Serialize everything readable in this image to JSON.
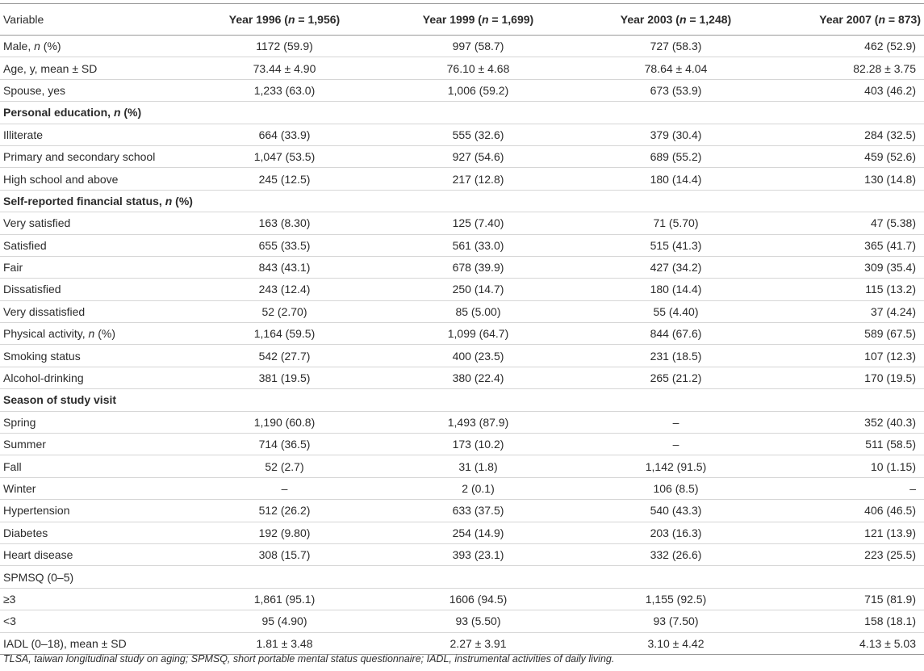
{
  "header": {
    "variable": "Variable",
    "years": [
      {
        "pre": "Year 1996 (",
        "n": "n",
        "post": " = 1,956)"
      },
      {
        "pre": "Year 1999 (",
        "n": "n",
        "post": " = 1,699)"
      },
      {
        "pre": "Year 2003 (",
        "n": "n",
        "post": " = 1,248)"
      },
      {
        "pre": "Year 2007 (",
        "n": "n",
        "post": " = 873)"
      }
    ]
  },
  "rows": [
    {
      "label": "Male, ",
      "label_n": "n",
      "label_rest": " (%)",
      "values": [
        "1172 (59.9)",
        "997 (58.7)",
        "727 (58.3)",
        "462 (52.9)"
      ]
    },
    {
      "label": "Age, y, mean ± SD",
      "values": [
        "73.44 ± 4.90",
        "76.10 ± 4.68",
        "78.64 ± 4.04",
        "82.28 ± 3.75"
      ]
    },
    {
      "label": "Spouse, yes",
      "values": [
        "1,233 (63.0)",
        "1,006 (59.2)",
        "673 (53.9)",
        "403 (46.2)"
      ]
    },
    {
      "section": true,
      "label": "Personal education, ",
      "label_n": "n",
      "label_rest": " (%)",
      "values": [
        "",
        "",
        "",
        ""
      ]
    },
    {
      "label": "Illiterate",
      "values": [
        "664 (33.9)",
        "555 (32.6)",
        "379 (30.4)",
        "284 (32.5)"
      ]
    },
    {
      "label": "Primary and secondary school",
      "values": [
        "1,047 (53.5)",
        "927 (54.6)",
        "689 (55.2)",
        "459 (52.6)"
      ]
    },
    {
      "label": "High school and above",
      "values": [
        "245 (12.5)",
        "217 (12.8)",
        "180 (14.4)",
        "130 (14.8)"
      ]
    },
    {
      "section": true,
      "label": "Self-reported financial status, ",
      "label_n": "n",
      "label_rest": " (%)",
      "values": [
        "",
        "",
        "",
        ""
      ]
    },
    {
      "label": "Very satisfied",
      "values": [
        "163 (8.30)",
        "125 (7.40)",
        "71 (5.70)",
        "47 (5.38)"
      ]
    },
    {
      "label": "Satisfied",
      "values": [
        "655 (33.5)",
        "561 (33.0)",
        "515 (41.3)",
        "365 (41.7)"
      ]
    },
    {
      "label": "Fair",
      "values": [
        "843 (43.1)",
        "678 (39.9)",
        "427 (34.2)",
        "309 (35.4)"
      ]
    },
    {
      "label": "Dissatisfied",
      "values": [
        "243 (12.4)",
        "250 (14.7)",
        "180 (14.4)",
        "115 (13.2)"
      ]
    },
    {
      "label": "Very dissatisfied",
      "values": [
        "52 (2.70)",
        "85 (5.00)",
        "55 (4.40)",
        "37 (4.24)"
      ]
    },
    {
      "label": "Physical activity, ",
      "label_n": "n",
      "label_rest": " (%)",
      "values": [
        "1,164 (59.5)",
        "1,099 (64.7)",
        "844 (67.6)",
        "589 (67.5)"
      ]
    },
    {
      "label": "Smoking status",
      "values": [
        "542 (27.7)",
        "400 (23.5)",
        "231 (18.5)",
        "107 (12.3)"
      ]
    },
    {
      "label": "Alcohol-drinking",
      "values": [
        "381 (19.5)",
        "380 (22.4)",
        "265 (21.2)",
        "170 (19.5)"
      ]
    },
    {
      "section": true,
      "label": "Season of study visit",
      "values": [
        "",
        "",
        "",
        ""
      ]
    },
    {
      "label": "Spring",
      "values": [
        "1,190 (60.8)",
        "1,493 (87.9)",
        "–",
        "352 (40.3)"
      ]
    },
    {
      "label": "Summer",
      "values": [
        "714 (36.5)",
        "173 (10.2)",
        "–",
        "511 (58.5)"
      ]
    },
    {
      "label": "Fall",
      "values": [
        "52 (2.7)",
        "31 (1.8)",
        "1,142 (91.5)",
        "10 (1.15)"
      ]
    },
    {
      "label": "Winter",
      "values": [
        "–",
        "2 (0.1)",
        "106 (8.5)",
        "–"
      ]
    },
    {
      "label": "Hypertension",
      "values": [
        "512 (26.2)",
        "633 (37.5)",
        "540 (43.3)",
        "406 (46.5)"
      ]
    },
    {
      "label": "Diabetes",
      "values": [
        "192 (9.80)",
        "254 (14.9)",
        "203 (16.3)",
        "121 (13.9)"
      ]
    },
    {
      "label": "Heart disease",
      "values": [
        "308 (15.7)",
        "393 (23.1)",
        "332 (26.6)",
        "223 (25.5)"
      ]
    },
    {
      "label": "SPMSQ (0–5)",
      "values": [
        "",
        "",
        "",
        ""
      ]
    },
    {
      "label": "≥3",
      "values": [
        "1,861 (95.1)",
        "1606 (94.5)",
        "1,155 (92.5)",
        "715 (81.9)"
      ]
    },
    {
      "label": "<3",
      "values": [
        "95 (4.90)",
        "93 (5.50)",
        "93 (7.50)",
        "158 (18.1)"
      ]
    },
    {
      "label": "IADL (0–18), mean ± SD",
      "values": [
        "1.81 ± 3.48",
        "2.27 ± 3.91",
        "3.10 ± 4.42",
        "4.13 ± 5.03"
      ]
    }
  ],
  "footnote": "TLSA, taiwan longitudinal study on aging; SPMSQ, short portable mental status questionnaire; IADL, instrumental activities of daily living."
}
